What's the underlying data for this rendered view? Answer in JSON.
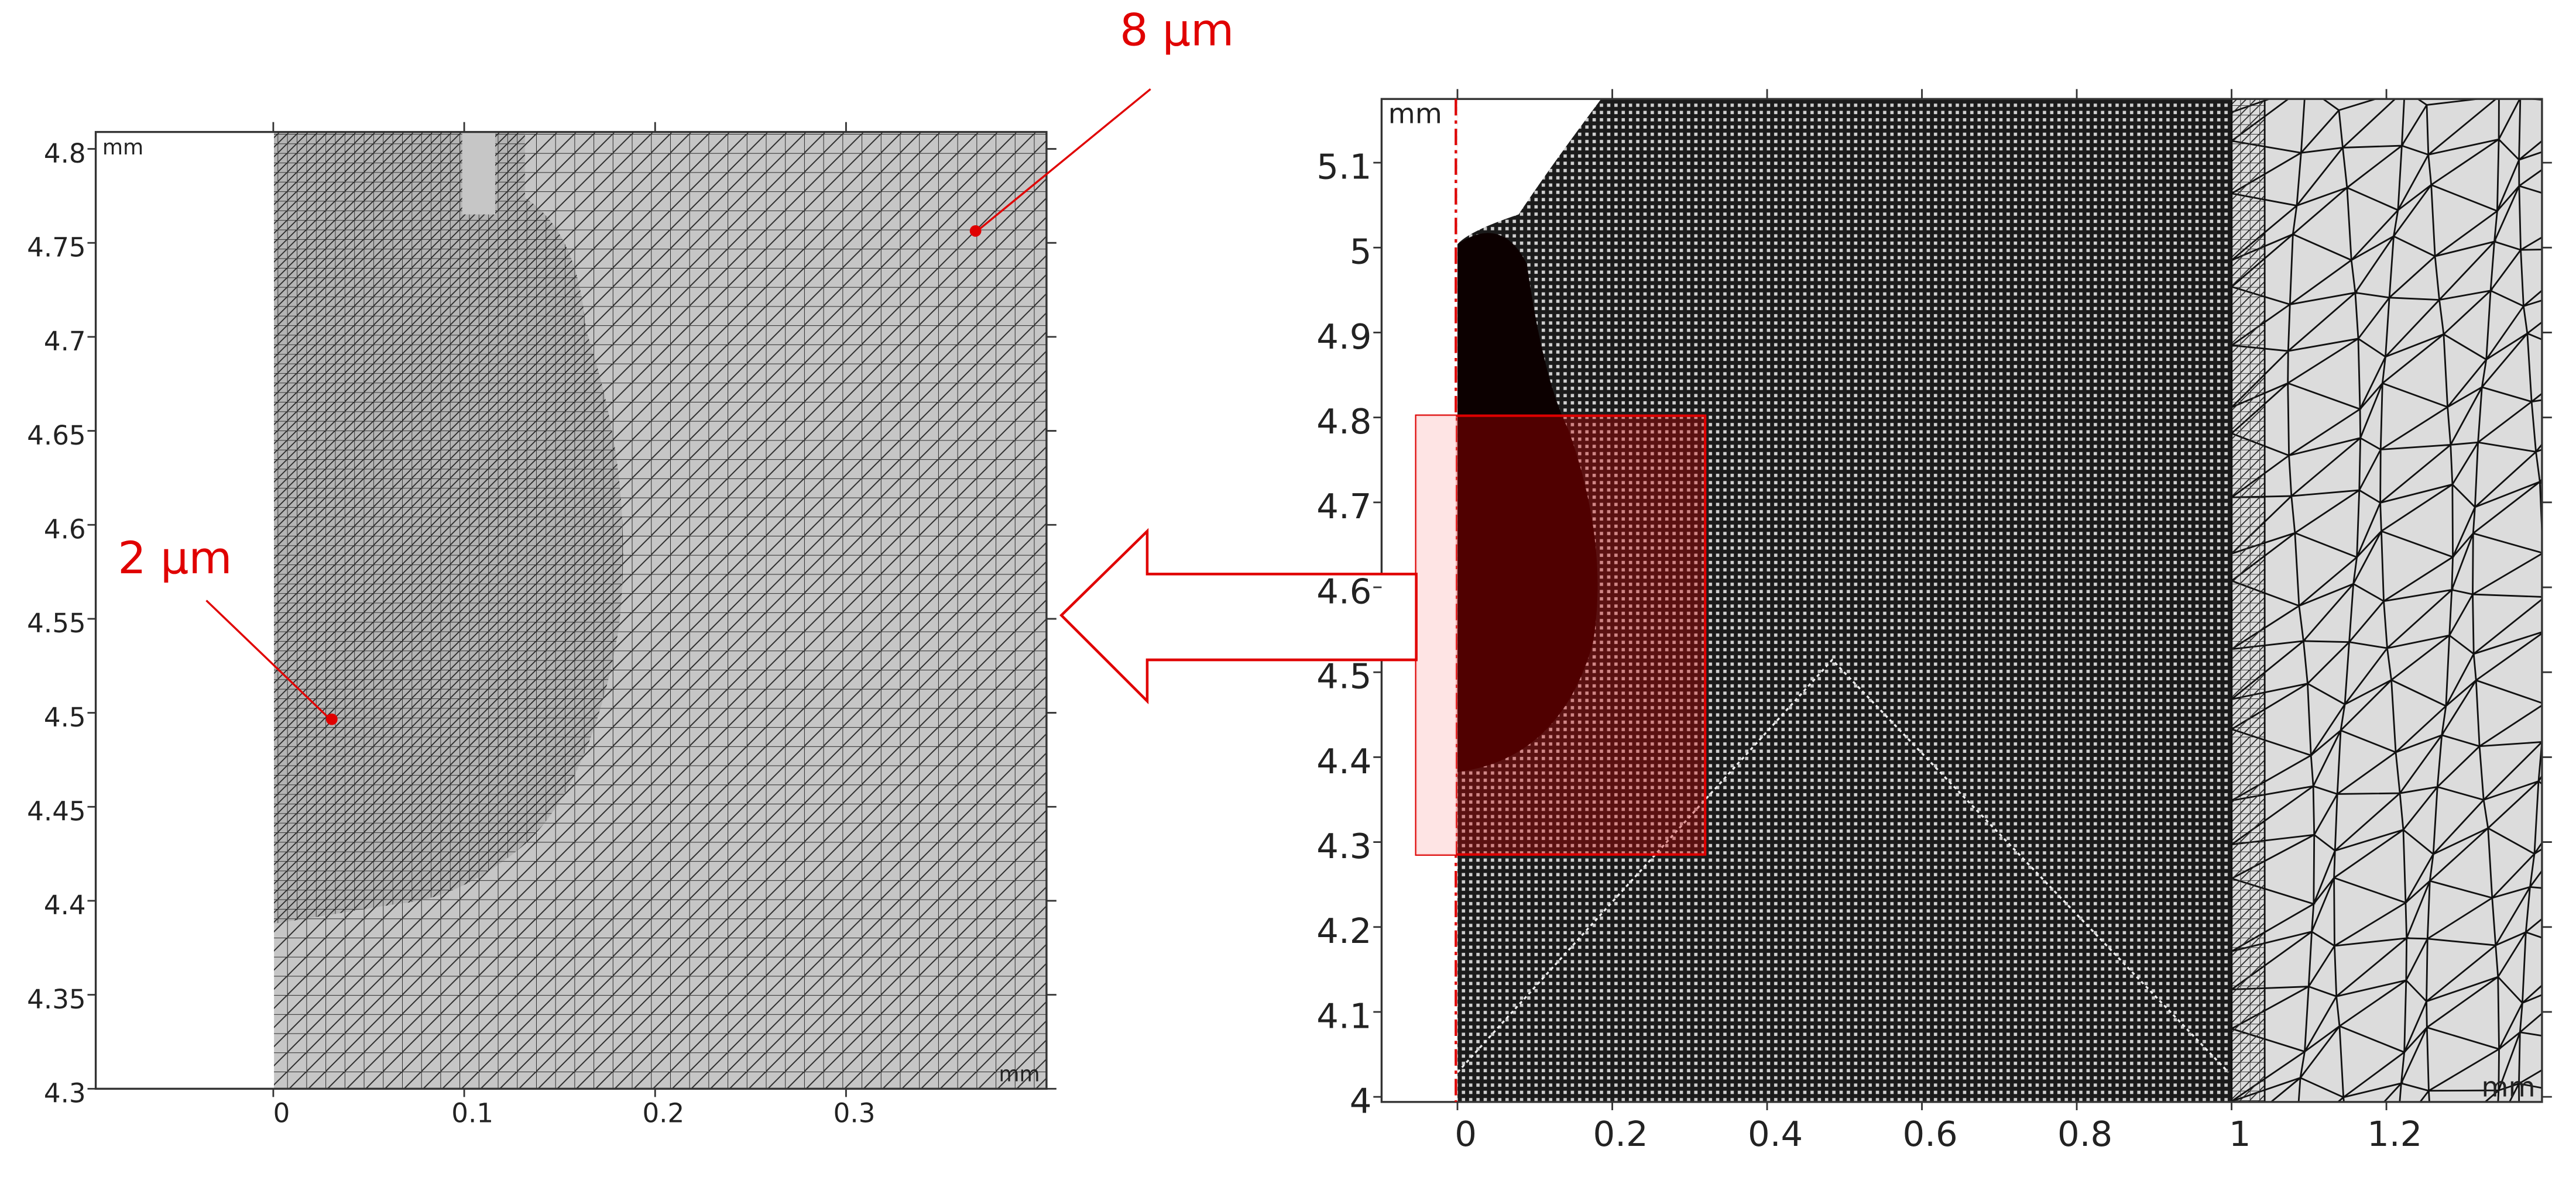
{
  "chart_data": [
    {
      "type": "mesh",
      "unit": "mm",
      "xlim": [
        -0.093,
        0.405
      ],
      "ylim": [
        4.3,
        4.809
      ],
      "xticks": [
        0,
        0.1,
        0.2,
        0.3
      ],
      "yticks": [
        4.3,
        4.35,
        4.4,
        4.45,
        4.5,
        4.55,
        4.6,
        4.65,
        4.7,
        4.75,
        4.8
      ],
      "annotations": [
        "8 µm",
        "2 µm"
      ]
    },
    {
      "type": "mesh",
      "unit": "mm",
      "xlim": [
        -0.098,
        1.401
      ],
      "ylim": [
        3.994,
        5.175
      ],
      "xticks": [
        0,
        0.2,
        0.4,
        0.6,
        0.8,
        1,
        1.2
      ],
      "yticks": [
        4,
        4.1,
        4.2,
        4.3,
        4.4,
        4.5,
        4.6,
        4.7,
        4.8,
        4.9,
        5,
        5.1
      ]
    }
  ]
}
